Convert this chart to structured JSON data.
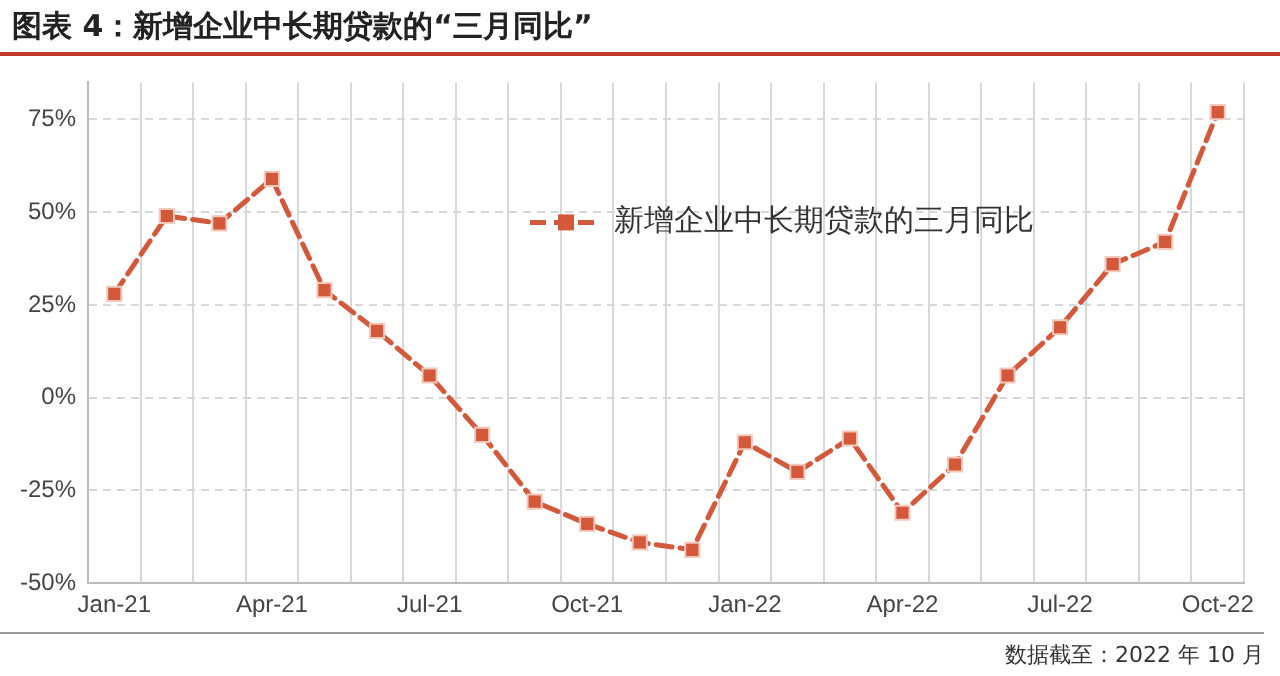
{
  "chart_data": {
    "type": "line",
    "title": "图表 4：新增企业中长期贷款的“三月同比”",
    "categories": [
      "Jan-21",
      null,
      null,
      "Apr-21",
      null,
      null,
      "Jul-21",
      null,
      null,
      "Oct-21",
      null,
      null,
      "Jan-22",
      null,
      null,
      "Apr-22",
      null,
      null,
      "Jul-22",
      null,
      null,
      "Oct-22"
    ],
    "series": [
      {
        "name": "新增企业中长期贷款的三月同比",
        "color": "#d4583a",
        "values": [
          28,
          49,
          47,
          59,
          29,
          18,
          6,
          -10,
          -28,
          -34,
          -39,
          -41,
          -12,
          -20,
          -11,
          -31,
          -18,
          6,
          19,
          36,
          42,
          77
        ]
      }
    ],
    "ylim": [
      -50,
      85
    ],
    "yticks": [
      {
        "value": -50,
        "label": "-50%"
      },
      {
        "value": -25,
        "label": "-25%"
      },
      {
        "value": 0,
        "label": "0%"
      },
      {
        "value": 25,
        "label": "25%"
      },
      {
        "value": 50,
        "label": "50%"
      },
      {
        "value": 75,
        "label": "75%"
      }
    ],
    "grid": true,
    "legend": "top",
    "marker": "square",
    "line_style": "dashed",
    "annotations": [
      "数据截至：2022 年 10 月"
    ]
  }
}
